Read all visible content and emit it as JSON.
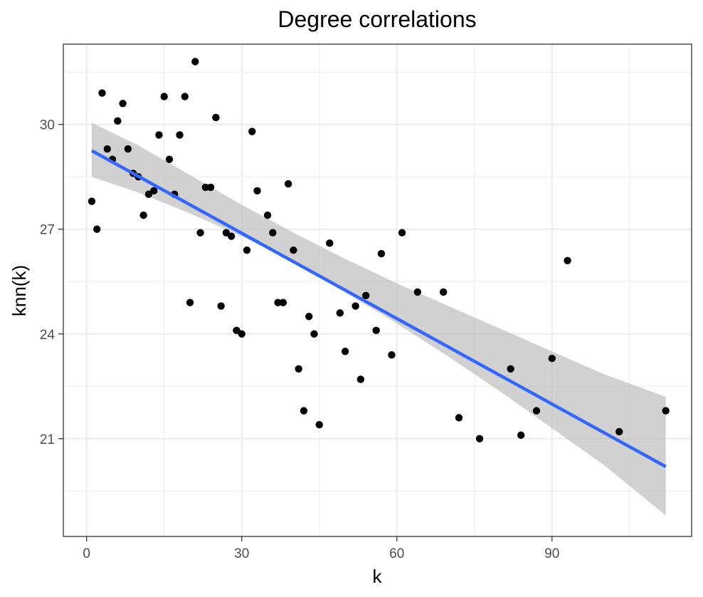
{
  "chart_data": {
    "type": "scatter",
    "title": "Degree correlations",
    "xlabel": "k",
    "ylabel": "knn(k)",
    "xlim": [
      -4.5,
      117
    ],
    "ylim": [
      18.2,
      32.3
    ],
    "x_ticks": [
      0,
      30,
      60,
      90
    ],
    "y_ticks": [
      21,
      24,
      27,
      30
    ],
    "x_tick_labels": [
      "0",
      "30",
      "60",
      "90"
    ],
    "y_tick_labels": [
      "21",
      "24",
      "27",
      "30"
    ],
    "grid": true,
    "legend": "none",
    "points": [
      {
        "x": 1,
        "y": 27.8
      },
      {
        "x": 2,
        "y": 27.0
      },
      {
        "x": 3,
        "y": 30.9
      },
      {
        "x": 4,
        "y": 29.3
      },
      {
        "x": 5,
        "y": 29.0
      },
      {
        "x": 6,
        "y": 30.1
      },
      {
        "x": 7,
        "y": 30.6
      },
      {
        "x": 8,
        "y": 29.3
      },
      {
        "x": 9,
        "y": 28.6
      },
      {
        "x": 10,
        "y": 28.5
      },
      {
        "x": 11,
        "y": 27.4
      },
      {
        "x": 12,
        "y": 28.0
      },
      {
        "x": 13,
        "y": 28.1
      },
      {
        "x": 14,
        "y": 29.7
      },
      {
        "x": 15,
        "y": 30.8
      },
      {
        "x": 16,
        "y": 29.0
      },
      {
        "x": 17,
        "y": 28.0
      },
      {
        "x": 18,
        "y": 29.7
      },
      {
        "x": 19,
        "y": 30.8
      },
      {
        "x": 20,
        "y": 24.9
      },
      {
        "x": 21,
        "y": 31.8
      },
      {
        "x": 22,
        "y": 26.9
      },
      {
        "x": 23,
        "y": 28.2
      },
      {
        "x": 24,
        "y": 28.2
      },
      {
        "x": 25,
        "y": 30.2
      },
      {
        "x": 26,
        "y": 24.8
      },
      {
        "x": 27,
        "y": 26.9
      },
      {
        "x": 28,
        "y": 26.8
      },
      {
        "x": 29,
        "y": 24.1
      },
      {
        "x": 30,
        "y": 24.0
      },
      {
        "x": 31,
        "y": 26.4
      },
      {
        "x": 32,
        "y": 29.8
      },
      {
        "x": 33,
        "y": 28.1
      },
      {
        "x": 35,
        "y": 27.4
      },
      {
        "x": 36,
        "y": 26.9
      },
      {
        "x": 37,
        "y": 24.9
      },
      {
        "x": 38,
        "y": 24.9
      },
      {
        "x": 39,
        "y": 28.3
      },
      {
        "x": 40,
        "y": 26.4
      },
      {
        "x": 41,
        "y": 23.0
      },
      {
        "x": 42,
        "y": 21.8
      },
      {
        "x": 43,
        "y": 24.5
      },
      {
        "x": 44,
        "y": 24.0
      },
      {
        "x": 45,
        "y": 21.4
      },
      {
        "x": 47,
        "y": 26.6
      },
      {
        "x": 49,
        "y": 24.6
      },
      {
        "x": 50,
        "y": 23.5
      },
      {
        "x": 52,
        "y": 24.8
      },
      {
        "x": 53,
        "y": 22.7
      },
      {
        "x": 54,
        "y": 25.1
      },
      {
        "x": 56,
        "y": 24.1
      },
      {
        "x": 57,
        "y": 26.3
      },
      {
        "x": 59,
        "y": 23.4
      },
      {
        "x": 61,
        "y": 26.9
      },
      {
        "x": 64,
        "y": 25.2
      },
      {
        "x": 69,
        "y": 25.2
      },
      {
        "x": 72,
        "y": 21.6
      },
      {
        "x": 76,
        "y": 21.0
      },
      {
        "x": 82,
        "y": 23.0
      },
      {
        "x": 84,
        "y": 21.1
      },
      {
        "x": 87,
        "y": 21.8
      },
      {
        "x": 90,
        "y": 23.3
      },
      {
        "x": 93,
        "y": 26.1
      },
      {
        "x": 103,
        "y": 21.2
      },
      {
        "x": 112,
        "y": 21.8
      }
    ],
    "fit_line": {
      "x": [
        1,
        112
      ],
      "y": [
        29.25,
        20.2
      ]
    },
    "confidence_band": {
      "x": [
        1,
        10,
        20,
        30,
        40,
        50,
        60,
        70,
        80,
        90,
        100,
        112
      ],
      "upper": [
        30.05,
        29.4,
        28.55,
        27.7,
        26.9,
        26.15,
        25.45,
        24.8,
        24.15,
        23.5,
        22.85,
        22.2
      ],
      "lower": [
        28.5,
        28.05,
        27.45,
        26.8,
        26.05,
        25.2,
        24.3,
        23.35,
        22.35,
        21.3,
        20.25,
        18.8
      ]
    },
    "colors": {
      "points": "#000000",
      "fit_line": "#3366ff",
      "band": "#bdbdbd",
      "grid": "#ebebeb",
      "panel_border": "#333333"
    }
  }
}
